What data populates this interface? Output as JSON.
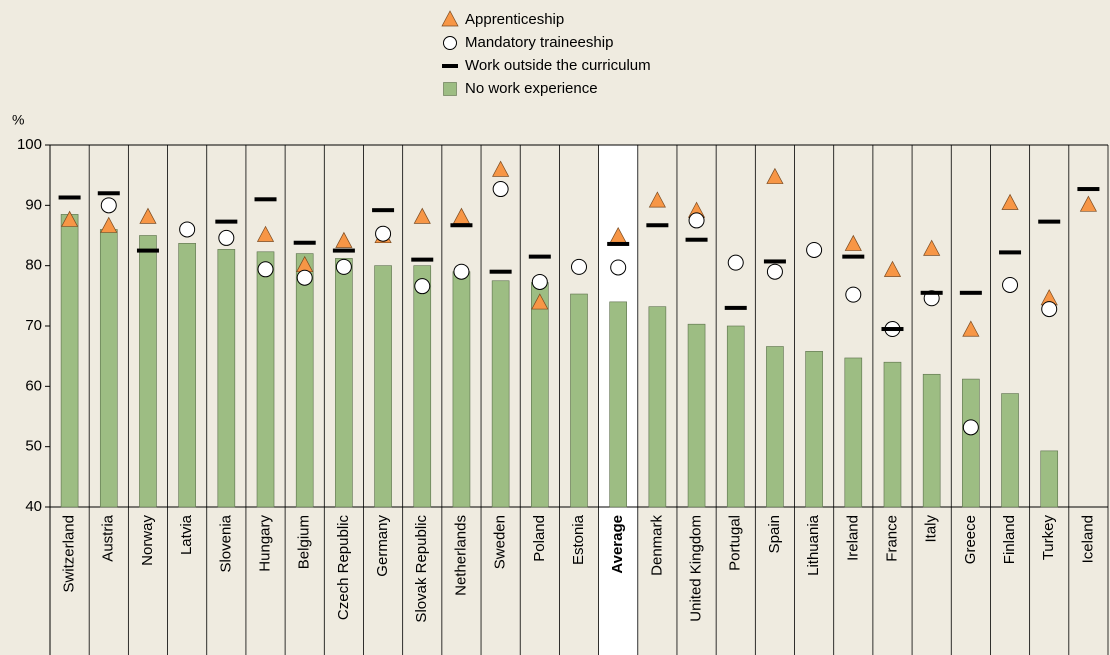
{
  "chart_data": {
    "type": "bar",
    "y_label": "%",
    "categories": [
      "Switzerland",
      "Austria",
      "Norway",
      "Latvia",
      "Slovenia",
      "Hungary",
      "Belgium",
      "Czech Republic",
      "Germany",
      "Slovak Republic",
      "Netherlands",
      "Sweden",
      "Poland",
      "Estonia",
      "Average",
      "Denmark",
      "United Kingdom",
      "Portugal",
      "Spain",
      "Lithuania",
      "Ireland",
      "France",
      "Italy",
      "Greece",
      "Finland",
      "Turkey",
      "Iceland"
    ],
    "highlight": "Average",
    "series": [
      {
        "name": "Apprenticeship",
        "marker": "triangle",
        "color": "#f79646",
        "values": [
          87.5,
          86.5,
          88,
          null,
          null,
          85,
          80,
          84,
          84.8,
          88,
          88,
          95.8,
          73.8,
          null,
          84.8,
          90.7,
          89,
          null,
          94.6,
          null,
          83.5,
          79.2,
          82.7,
          69.3,
          90.3,
          74.5,
          90
        ]
      },
      {
        "name": "Mandatory traineeship",
        "marker": "circle",
        "color": "#ffffff",
        "values": [
          null,
          90,
          null,
          86,
          84.6,
          79.4,
          78,
          79.8,
          85.3,
          76.6,
          79,
          92.7,
          77.3,
          79.8,
          79.7,
          null,
          87.5,
          80.5,
          79,
          82.6,
          75.2,
          69.5,
          74.6,
          53.2,
          76.8,
          72.8,
          null
        ]
      },
      {
        "name": "Work outside the curriculum",
        "marker": "dash",
        "color": "#000000",
        "values": [
          91.3,
          92,
          82.5,
          null,
          87.3,
          91,
          83.8,
          82.5,
          89.2,
          81,
          86.7,
          79,
          81.5,
          null,
          83.6,
          86.7,
          84.3,
          73,
          80.7,
          null,
          81.5,
          69.5,
          75.5,
          75.5,
          82.2,
          87.3,
          92.7
        ]
      },
      {
        "name": "No work experience",
        "marker": "bar",
        "color": "#9dbd83",
        "values": [
          88.5,
          86,
          85,
          83.7,
          82.7,
          82.3,
          82,
          81.2,
          80,
          80,
          79,
          77.5,
          77.2,
          75.3,
          74,
          73.2,
          70.3,
          70,
          66.6,
          65.8,
          64.7,
          64,
          62,
          61.2,
          58.8,
          49.3,
          null
        ]
      }
    ],
    "ylim": [
      40,
      100
    ],
    "yticks": [
      40,
      50,
      60,
      70,
      80,
      90,
      100
    ],
    "grid": false
  }
}
